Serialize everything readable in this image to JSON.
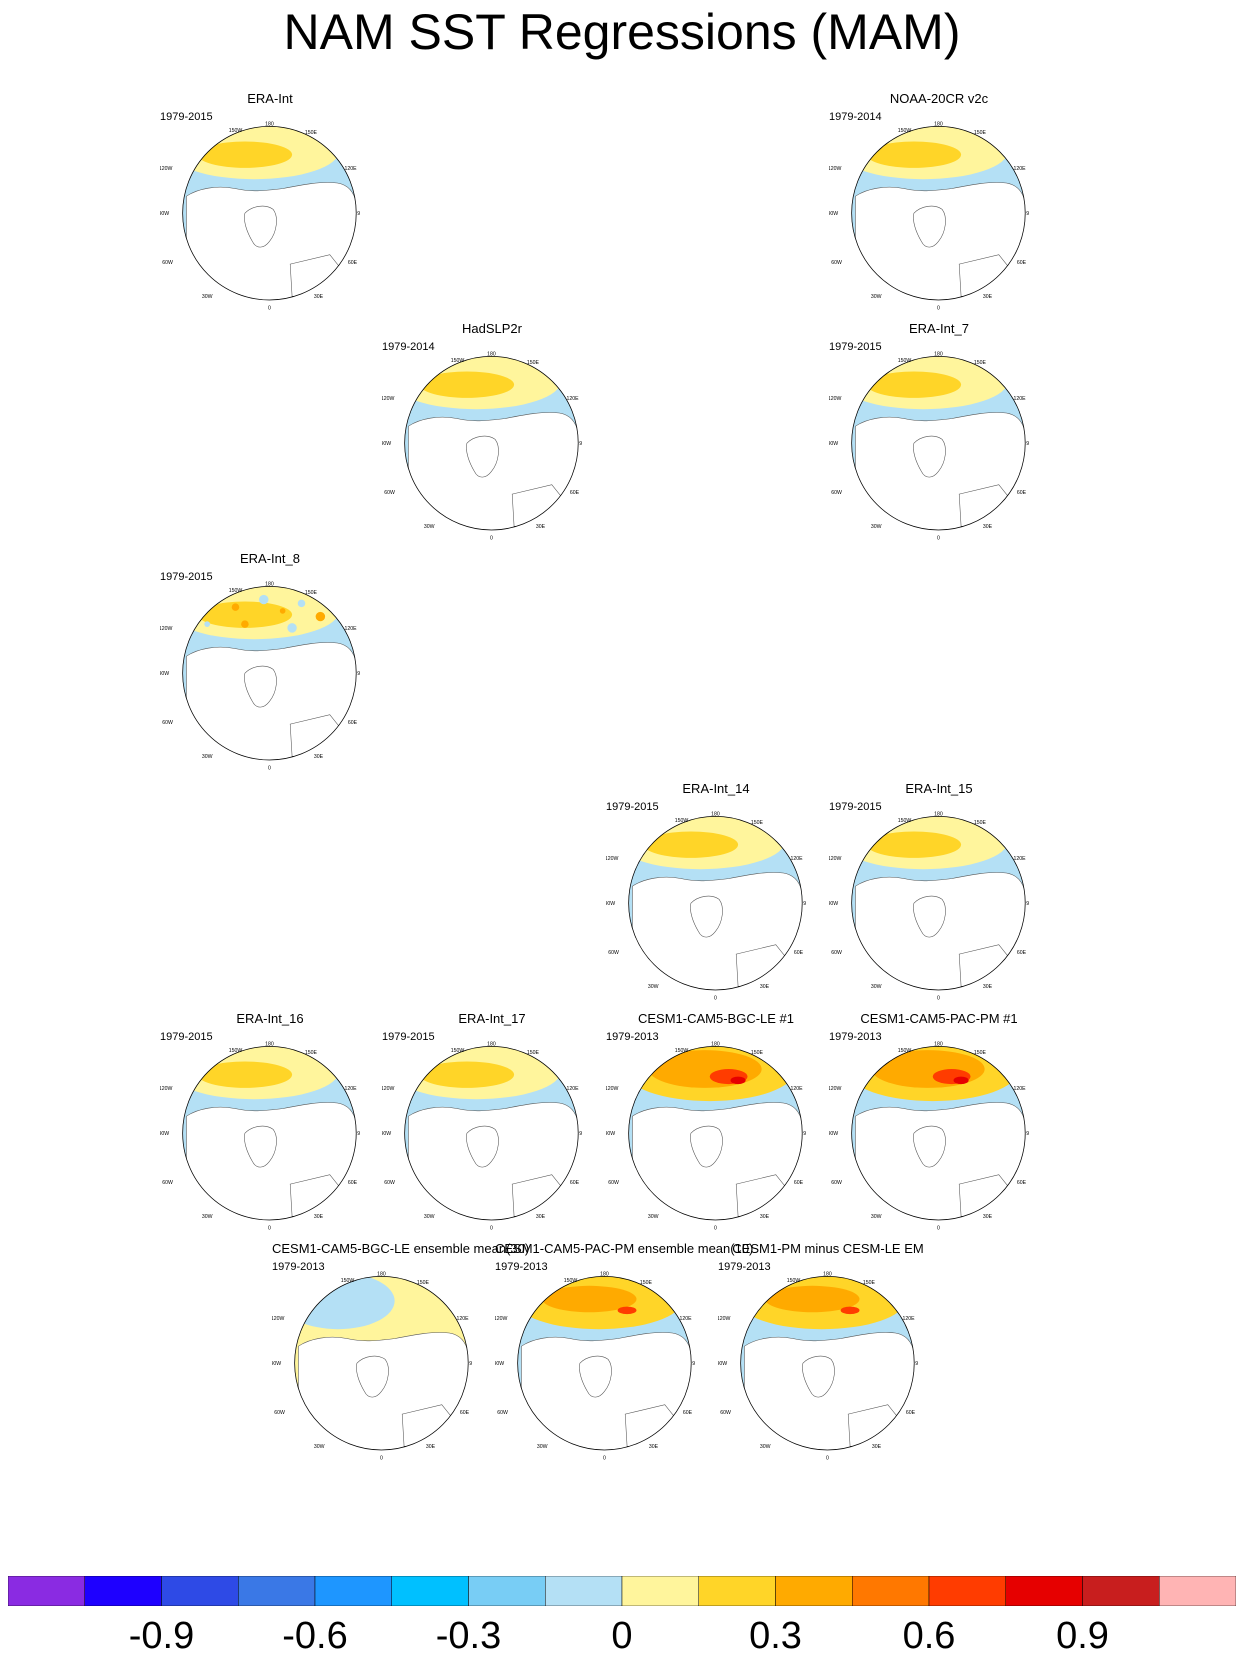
{
  "title": "NAM SST Regressions (MAM)",
  "panels": [
    {
      "id": "era-int",
      "title": "ERA-Int",
      "period": "1979-2015",
      "style": "obs"
    },
    {
      "id": "noaa-20cr",
      "title": "NOAA-20CR v2c",
      "period": "1979-2014",
      "style": "obs"
    },
    {
      "id": "hadslp2r",
      "title": "HadSLP2r",
      "period": "1979-2014",
      "style": "obs"
    },
    {
      "id": "era-int-7",
      "title": "ERA-Int_7",
      "period": "1979-2015",
      "style": "obs"
    },
    {
      "id": "era-int-8",
      "title": "ERA-Int_8",
      "period": "1979-2015",
      "style": "noisy"
    },
    {
      "id": "era-int-14",
      "title": "ERA-Int_14",
      "period": "1979-2015",
      "style": "obs"
    },
    {
      "id": "era-int-15",
      "title": "ERA-Int_15",
      "period": "1979-2015",
      "style": "obs"
    },
    {
      "id": "era-int-16",
      "title": "ERA-Int_16",
      "period": "1979-2015",
      "style": "obs"
    },
    {
      "id": "era-int-17",
      "title": "ERA-Int_17",
      "period": "1979-2015",
      "style": "obs"
    },
    {
      "id": "cesm-bgc-le-1",
      "title": "CESM1-CAM5-BGC-LE #1",
      "period": "1979-2013",
      "style": "model-strong"
    },
    {
      "id": "cesm-pac-pm-1",
      "title": "CESM1-CAM5-PAC-PM #1",
      "period": "1979-2013",
      "style": "model-strong"
    },
    {
      "id": "cesm-bgc-le-em",
      "title": "CESM1-CAM5-BGC-LE ensemble mean(30)",
      "period": "1979-2013",
      "style": "ensemble-weak"
    },
    {
      "id": "cesm-pac-pm-em",
      "title": "CESM1-CAM5-PAC-PM ensemble mean(10)",
      "period": "1979-2013",
      "style": "model-em"
    },
    {
      "id": "pm-minus-le",
      "title": "CESM1-PM minus CESM-LE EM",
      "period": "1979-2013",
      "style": "difference"
    }
  ],
  "map_labels": {
    "lon_180": "180",
    "lon_150w": "150W",
    "lon_150e": "150E",
    "lon_120w": "120W",
    "lon_120e": "120E",
    "lon_90w": "90W",
    "lon_90e": "90E",
    "lon_60w": "60W",
    "lon_60e": "60E",
    "lon_30w": "30W",
    "lon_30e": "30E",
    "lon_0": "0"
  },
  "colorbar": {
    "colors": [
      "#8a2be2",
      "#1e00ff",
      "#2e4ae6",
      "#3a78e6",
      "#1e96ff",
      "#00c0ff",
      "#78cdf5",
      "#b4e0f5",
      "#fff59c",
      "#ffd528",
      "#ffaa00",
      "#ff7800",
      "#ff3c00",
      "#e60000",
      "#c81e1e",
      "#ffb4b4"
    ],
    "labels": [
      "-0.9",
      "-0.6",
      "-0.3",
      "0",
      "0.3",
      "0.6",
      "0.9"
    ]
  }
}
